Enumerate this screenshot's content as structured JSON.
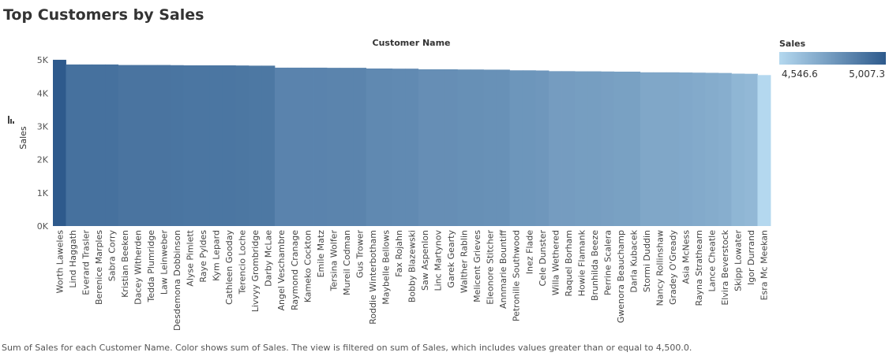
{
  "title": "Top Customers by Sales",
  "caption": "Sum of Sales for each Customer Name.  Color shows sum of Sales. The view is filtered on sum of Sales, which includes values greater than or equal to 4,500.0.",
  "legend": {
    "title": "Sales",
    "min_label": "4,546.6",
    "max_label": "5,007.3",
    "min_color": "#b4d8ef",
    "max_color": "#2e5a8c"
  },
  "sort_icon": "sort-descending-icon",
  "chart_data": {
    "type": "bar",
    "title": "Top Customers by Sales",
    "xlabel": "Customer Name",
    "ylabel": "Sales",
    "ylim": [
      0,
      5100
    ],
    "yticks": [
      0,
      1000,
      2000,
      3000,
      4000,
      5000
    ],
    "ytick_labels": [
      "0K",
      "1K",
      "2K",
      "3K",
      "4K",
      "5K"
    ],
    "grid": false,
    "legend_position": "top-right",
    "categories": [
      "Worth Laweles",
      "Lind Haggath",
      "Everard Trasler",
      "Berenice Marples",
      "Sabra Corry",
      "Kristian Beeken",
      "Dacey Witherden",
      "Tedda Plumridge",
      "Law Leinweber",
      "Desdemona Dobbinson",
      "Alyse Pimlett",
      "Raye Pyldes",
      "Kym Lepard",
      "Cathleen Gooday",
      "Terencio Loche",
      "Livvyy Grombridge",
      "Darby McLae",
      "Angel Veschambre",
      "Raymond Cranage",
      "Kameko Cockton",
      "Emile Matz",
      "Tersina Wolfer",
      "Mureil Codman",
      "Gus Trower",
      "Roddie Winterbotham",
      "Maybelle Bellows",
      "Fax Rojahn",
      "Bobby Blazewski",
      "Saw Aspenlon",
      "Linc Martynov",
      "Garek Gearty",
      "Walther Rablin",
      "Melicent Grieves",
      "Eleonore Stitcher",
      "Annmarie Bountiff",
      "Petronille Southwood",
      "Inez Flade",
      "Cele Dunster",
      "Willa Wethered",
      "Raquel Borham",
      "Howie Flamank",
      "Brunhilda Beeze",
      "Perrine Scalera",
      "Gwenora Beauchamp",
      "Darla Kubacek",
      "Stormi Duddin",
      "Nancy Rollinshaw",
      "Gradey O'Gready",
      "Asia McNess",
      "Rayna Strathearn",
      "Lance Cheatle",
      "Elvira Beverstock",
      "Skipp Lowater",
      "Igor Durrand",
      "Esra Mc Meekan"
    ],
    "values": [
      5007.3,
      4866,
      4866,
      4866,
      4866,
      4850,
      4850,
      4850,
      4850,
      4845,
      4840,
      4840,
      4840,
      4840,
      4835,
      4830,
      4830,
      4770,
      4770,
      4770,
      4770,
      4765,
      4765,
      4765,
      4745,
      4745,
      4740,
      4740,
      4720,
      4720,
      4720,
      4715,
      4715,
      4710,
      4710,
      4690,
      4690,
      4685,
      4665,
      4665,
      4660,
      4660,
      4655,
      4650,
      4650,
      4630,
      4630,
      4630,
      4625,
      4620,
      4615,
      4610,
      4590,
      4585,
      4546.6
    ]
  }
}
